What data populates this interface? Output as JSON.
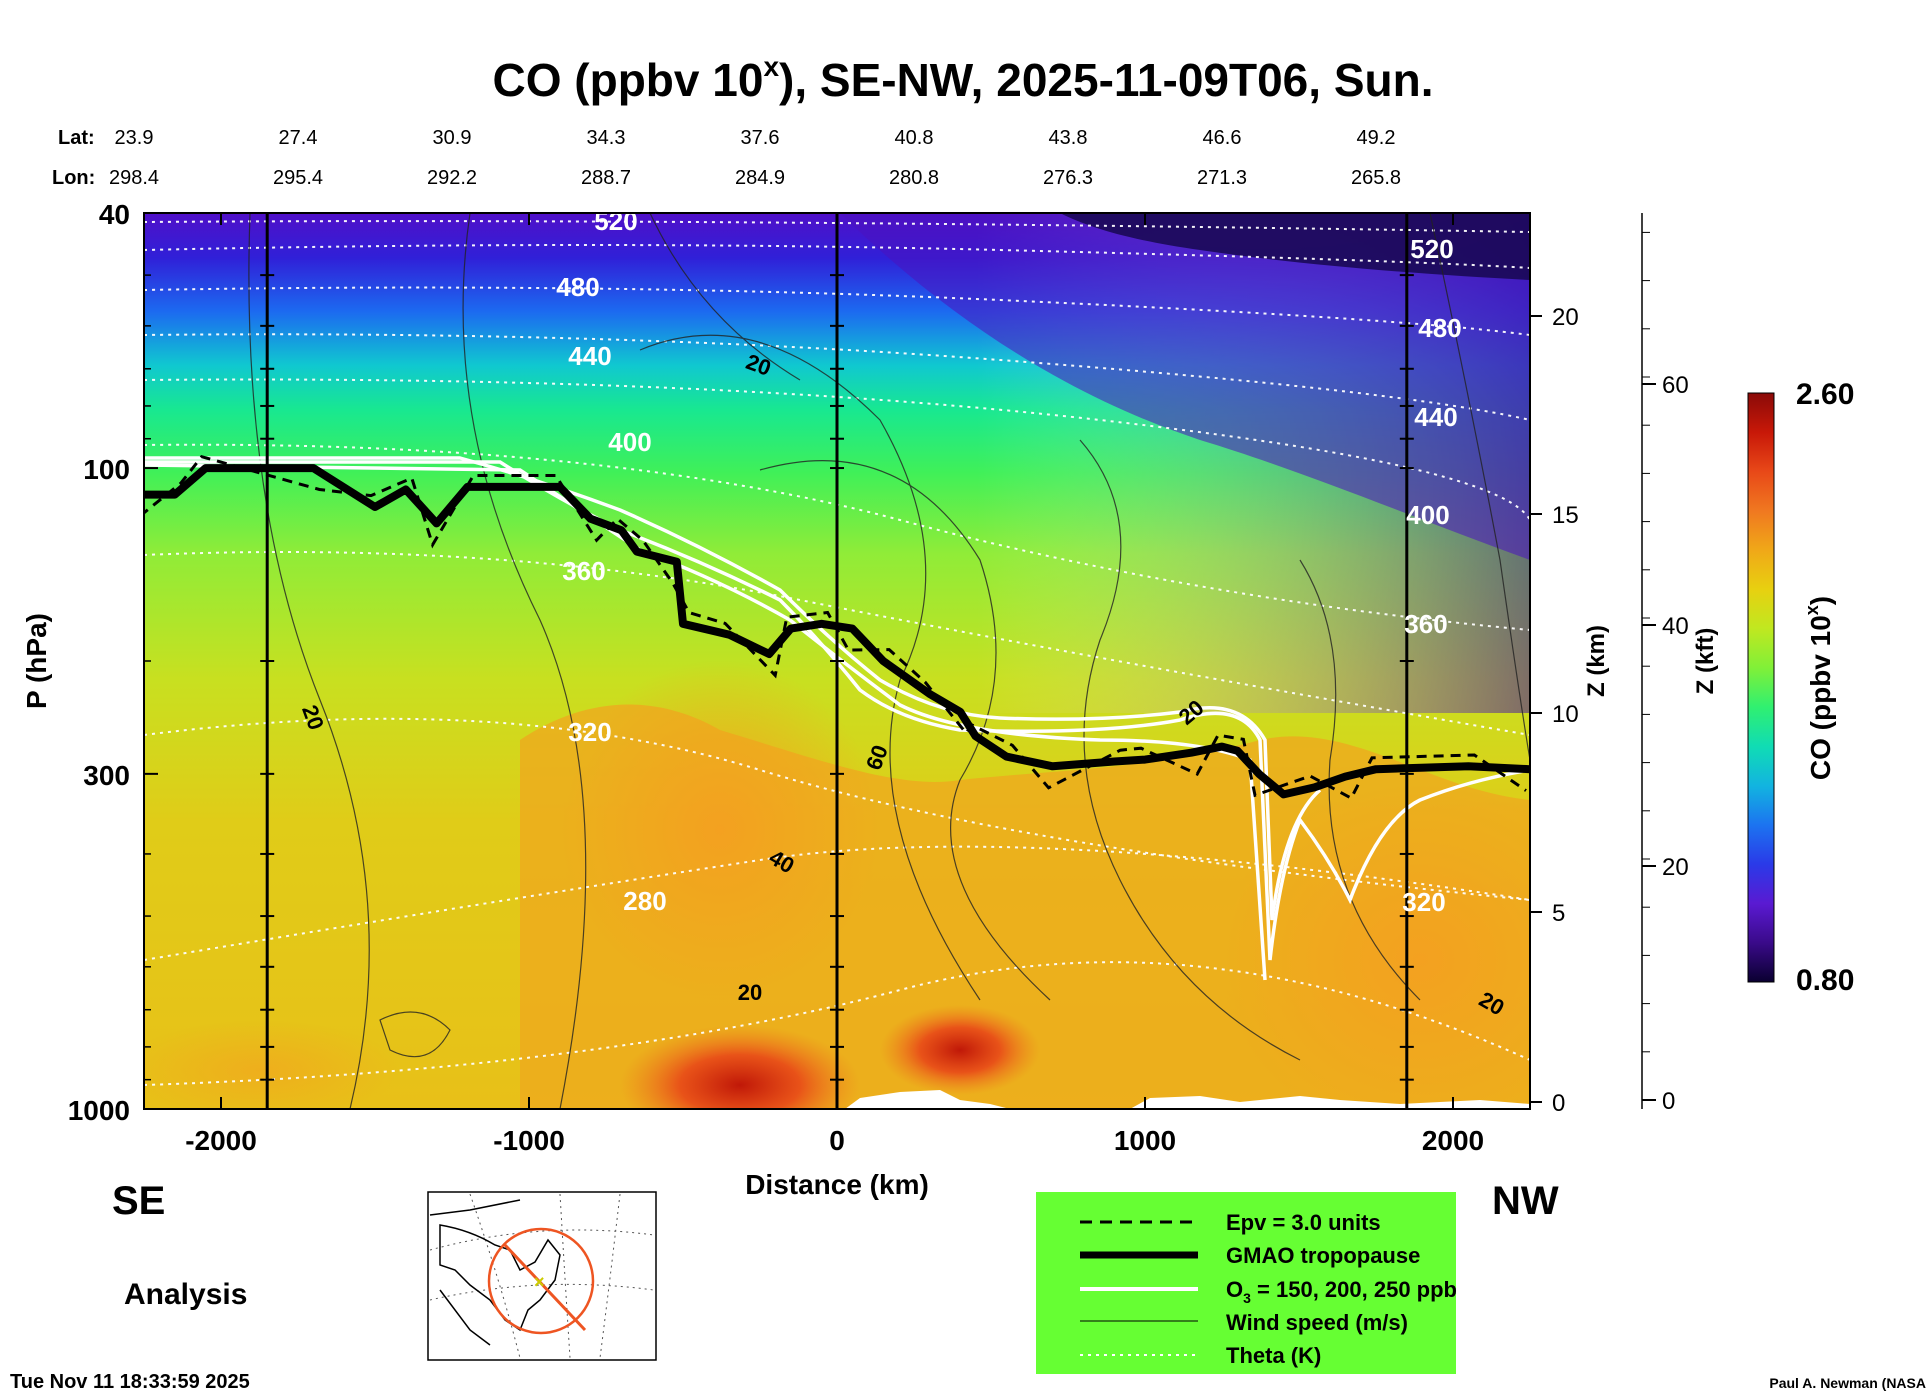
{
  "figure": {
    "title": "CO (ppbv 10",
    "title_sup": "x",
    "title_rest": "), SE-NW, 2025-11-09T06, Sun.",
    "timestamp": "Tue Nov 11 18:33:59 2025",
    "credit": "Paul A. Newman (NASA",
    "left_label": "SE",
    "right_label": "NW",
    "analysis_label": "Analysis"
  },
  "chart_data": {
    "type": "heatmap",
    "xlabel": "Distance (km)",
    "ylabel": "P (hPa)",
    "xlim": [
      -2250,
      2250
    ],
    "ylim": [
      1000,
      40
    ],
    "y_scale": "log",
    "x_ticks": [
      -2000,
      -1000,
      0,
      1000,
      2000
    ],
    "y_ticks": [
      40,
      100,
      300,
      1000
    ],
    "z_km_label": "Z (km)",
    "z_km_ticks": [
      0,
      5,
      10,
      15,
      20
    ],
    "z_kft_label": "Z (kft)",
    "z_kft_ticks": [
      0,
      20,
      40,
      60
    ],
    "lat_label": "Lat:",
    "lon_label": "Lon:",
    "lats": [
      "23.9",
      "27.4",
      "30.9",
      "34.3",
      "37.6",
      "40.8",
      "43.8",
      "46.6",
      "49.2"
    ],
    "lons": [
      "298.4",
      "295.4",
      "292.2",
      "288.7",
      "284.9",
      "280.8",
      "276.3",
      "271.3",
      "265.8"
    ],
    "vertical_markers_km": [
      -1850,
      0,
      1850
    ],
    "colorbar": {
      "label": "CO (ppbv 10",
      "label_sup": "x",
      "label_close": ")",
      "min": "0.80",
      "max": "2.60",
      "colors": [
        "#0a0030",
        "#3a0a8a",
        "#5a1ad2",
        "#2a3ae8",
        "#1c74f0",
        "#12b4e0",
        "#10dcb4",
        "#30f070",
        "#80f038",
        "#c0e820",
        "#e8d010",
        "#f0a818",
        "#f07820",
        "#e84818",
        "#c81808",
        "#8a0a08"
      ]
    },
    "theta_labels": [
      "520",
      "520",
      "480",
      "480",
      "440",
      "440",
      "400",
      "400",
      "360",
      "360",
      "320",
      "320",
      "280"
    ],
    "wind_labels": [
      "20",
      "20",
      "60",
      "40",
      "20",
      "20",
      "20"
    ],
    "tropopause_km": [
      [
        -2250,
        110
      ],
      [
        -2150,
        110
      ],
      [
        -2050,
        100
      ],
      [
        -1700,
        100
      ],
      [
        -1500,
        115
      ],
      [
        -1400,
        108
      ],
      [
        -1300,
        122
      ],
      [
        -1200,
        107
      ],
      [
        -900,
        107
      ],
      [
        -800,
        120
      ],
      [
        -700,
        125
      ],
      [
        -650,
        135
      ],
      [
        -520,
        140
      ],
      [
        -500,
        175
      ],
      [
        -350,
        182
      ],
      [
        -220,
        195
      ],
      [
        -150,
        178
      ],
      [
        -50,
        175
      ],
      [
        50,
        178
      ],
      [
        150,
        200
      ],
      [
        300,
        225
      ],
      [
        400,
        240
      ],
      [
        450,
        262
      ],
      [
        550,
        282
      ],
      [
        700,
        292
      ],
      [
        900,
        287
      ],
      [
        1000,
        285
      ],
      [
        1150,
        278
      ],
      [
        1250,
        272
      ],
      [
        1300,
        276
      ],
      [
        1370,
        300
      ],
      [
        1450,
        323
      ],
      [
        1550,
        315
      ],
      [
        1650,
        303
      ],
      [
        1750,
        295
      ],
      [
        2050,
        292
      ],
      [
        2250,
        295
      ]
    ],
    "legend": {
      "items": [
        {
          "label": "Epv = 3.0 units",
          "style": "dashed-black"
        },
        {
          "label": "GMAO tropopause",
          "style": "thick-black"
        },
        {
          "label": "O",
          "sub": "3",
          "rest": " = 150, 200, 250 ppb",
          "style": "white"
        },
        {
          "label": "Wind speed (m/s)",
          "style": "thin-black"
        },
        {
          "label": "Theta (K)",
          "style": "dotted-white"
        }
      ],
      "background": "#66ff33"
    },
    "grid": false
  }
}
